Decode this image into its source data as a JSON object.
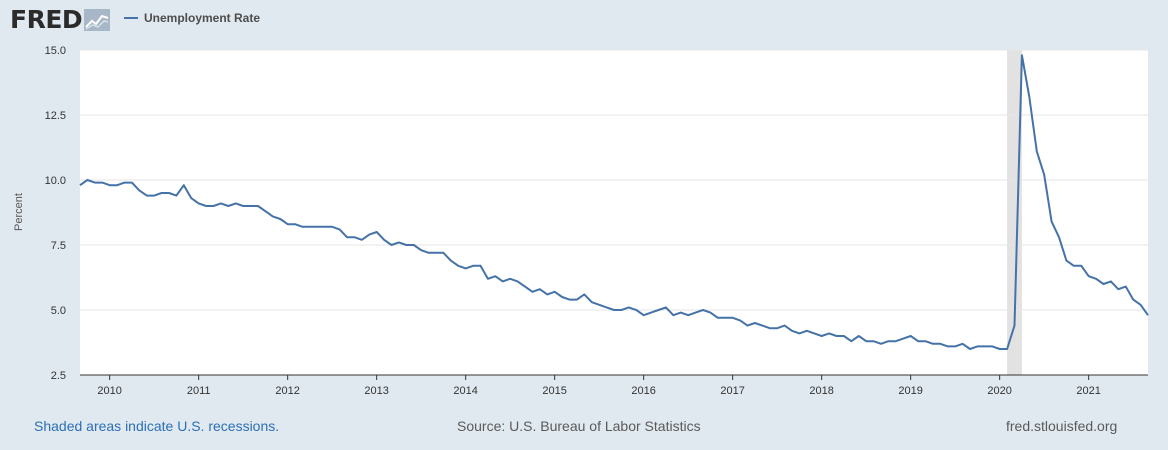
{
  "brand": {
    "name": "FRED",
    "icon": "trend-chart-icon"
  },
  "colors": {
    "series": "#4572a7",
    "recession": "#e2e2e2",
    "background": "#e1e9f0"
  },
  "footer": {
    "note": "Shaded areas indicate U.S. recessions.",
    "source": "Source: U.S. Bureau of Labor Statistics",
    "site": "fred.stlouisfed.org"
  },
  "chart_data": {
    "type": "line",
    "title": "",
    "ylabel": "Percent",
    "xlabel": "",
    "ylim": [
      2.5,
      15.0
    ],
    "xlim": [
      "2009-09",
      "2021-09"
    ],
    "yticks": [
      "2.5",
      "5.0",
      "7.5",
      "10.0",
      "12.5",
      "15.0"
    ],
    "xticks": [
      "2010",
      "2011",
      "2012",
      "2013",
      "2014",
      "2015",
      "2016",
      "2017",
      "2018",
      "2019",
      "2020",
      "2021"
    ],
    "grid": true,
    "legend_position": "top-left",
    "recessions": [
      {
        "start": "2020-02",
        "end": "2020-04"
      }
    ],
    "series": [
      {
        "name": "Unemployment Rate",
        "start": "2009-09",
        "frequency": "monthly",
        "values": [
          9.8,
          10.0,
          9.9,
          9.9,
          9.8,
          9.8,
          9.9,
          9.9,
          9.6,
          9.4,
          9.4,
          9.5,
          9.5,
          9.4,
          9.8,
          9.3,
          9.1,
          9.0,
          9.0,
          9.1,
          9.0,
          9.1,
          9.0,
          9.0,
          9.0,
          8.8,
          8.6,
          8.5,
          8.3,
          8.3,
          8.2,
          8.2,
          8.2,
          8.2,
          8.2,
          8.1,
          7.8,
          7.8,
          7.7,
          7.9,
          8.0,
          7.7,
          7.5,
          7.6,
          7.5,
          7.5,
          7.3,
          7.2,
          7.2,
          7.2,
          6.9,
          6.7,
          6.6,
          6.7,
          6.7,
          6.2,
          6.3,
          6.1,
          6.2,
          6.1,
          5.9,
          5.7,
          5.8,
          5.6,
          5.7,
          5.5,
          5.4,
          5.4,
          5.6,
          5.3,
          5.2,
          5.1,
          5.0,
          5.0,
          5.1,
          5.0,
          4.8,
          4.9,
          5.0,
          5.1,
          4.8,
          4.9,
          4.8,
          4.9,
          5.0,
          4.9,
          4.7,
          4.7,
          4.7,
          4.6,
          4.4,
          4.5,
          4.4,
          4.3,
          4.3,
          4.4,
          4.2,
          4.1,
          4.2,
          4.1,
          4.0,
          4.1,
          4.0,
          4.0,
          3.8,
          4.0,
          3.8,
          3.8,
          3.7,
          3.8,
          3.8,
          3.9,
          4.0,
          3.8,
          3.8,
          3.7,
          3.7,
          3.6,
          3.6,
          3.7,
          3.5,
          3.6,
          3.6,
          3.6,
          3.5,
          3.5,
          4.4,
          14.8,
          13.2,
          11.1,
          10.2,
          8.4,
          7.8,
          6.9,
          6.7,
          6.7,
          6.3,
          6.2,
          6.0,
          6.1,
          5.8,
          5.9,
          5.4,
          5.2,
          4.8
        ]
      }
    ]
  }
}
